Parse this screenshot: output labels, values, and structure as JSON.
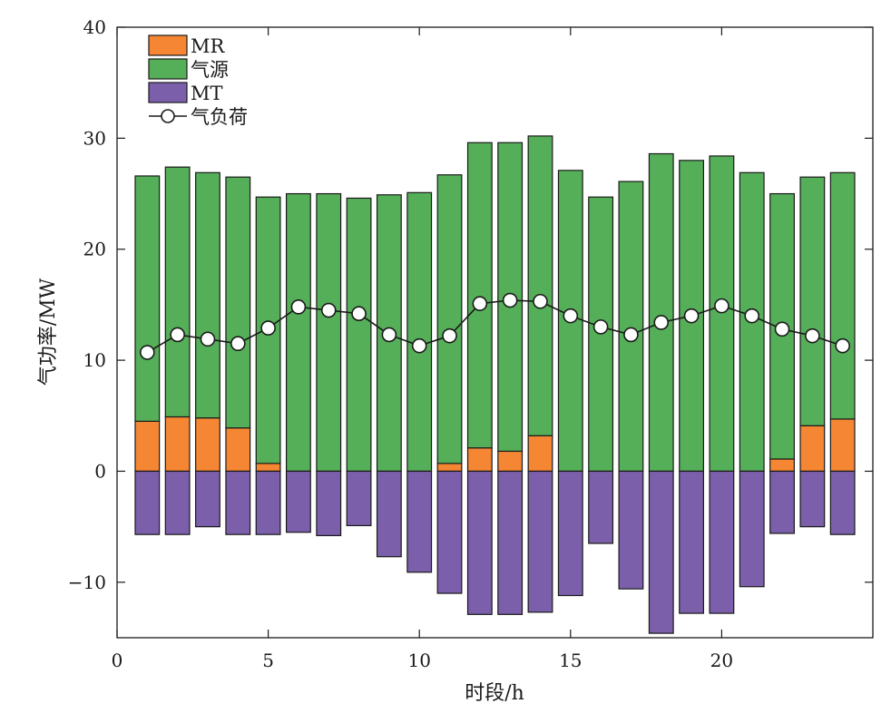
{
  "chart_data": {
    "type": "bar",
    "stacked": true,
    "xlabel": "时段/h",
    "ylabel": "气功率/MW",
    "xlim": [
      0,
      25
    ],
    "ylim": [
      -15,
      40
    ],
    "xticks": [
      0,
      5,
      10,
      15,
      20
    ],
    "yticks": [
      -10,
      0,
      10,
      20,
      30,
      40
    ],
    "grid": false,
    "legend_position": "top-left",
    "x": [
      1,
      2,
      3,
      4,
      5,
      6,
      7,
      8,
      9,
      10,
      11,
      12,
      13,
      14,
      15,
      16,
      17,
      18,
      19,
      20,
      21,
      22,
      23,
      24
    ],
    "series": [
      {
        "name": "MR",
        "kind": "bar",
        "color": "#f58634",
        "values": [
          4.5,
          4.9,
          4.8,
          3.9,
          0.7,
          0,
          0,
          0,
          0,
          0,
          0.7,
          2.1,
          1.8,
          3.2,
          0,
          0,
          0,
          0,
          0,
          0,
          0,
          1.1,
          4.1,
          4.7
        ]
      },
      {
        "name": "气源",
        "kind": "bar",
        "color": "#55ae58",
        "values": [
          22.1,
          22.5,
          22.1,
          22.6,
          24.0,
          25.0,
          25.0,
          24.6,
          24.9,
          25.1,
          26.0,
          27.5,
          27.8,
          27.0,
          27.1,
          24.7,
          26.1,
          28.6,
          28.0,
          28.4,
          26.9,
          23.9,
          22.4,
          22.2
        ]
      },
      {
        "name": "MT",
        "kind": "bar",
        "color": "#7b5fab",
        "values": [
          -5.7,
          -5.7,
          -5.0,
          -5.7,
          -5.7,
          -5.5,
          -5.8,
          -4.9,
          -7.7,
          -9.1,
          -11.0,
          -12.9,
          -12.9,
          -12.7,
          -11.2,
          -6.5,
          -10.6,
          -14.6,
          -12.8,
          -12.8,
          -10.4,
          -5.6,
          -5.0,
          -5.7
        ]
      },
      {
        "name": "气负荷",
        "kind": "line",
        "color": "#1a1a1a",
        "marker": "open-circle",
        "values": [
          10.7,
          12.3,
          11.9,
          11.5,
          12.9,
          14.8,
          14.5,
          14.2,
          12.3,
          11.3,
          12.2,
          15.1,
          15.4,
          15.3,
          14.0,
          13.0,
          12.3,
          13.4,
          14.0,
          14.9,
          14.0,
          12.8,
          12.2,
          11.3
        ]
      }
    ]
  }
}
